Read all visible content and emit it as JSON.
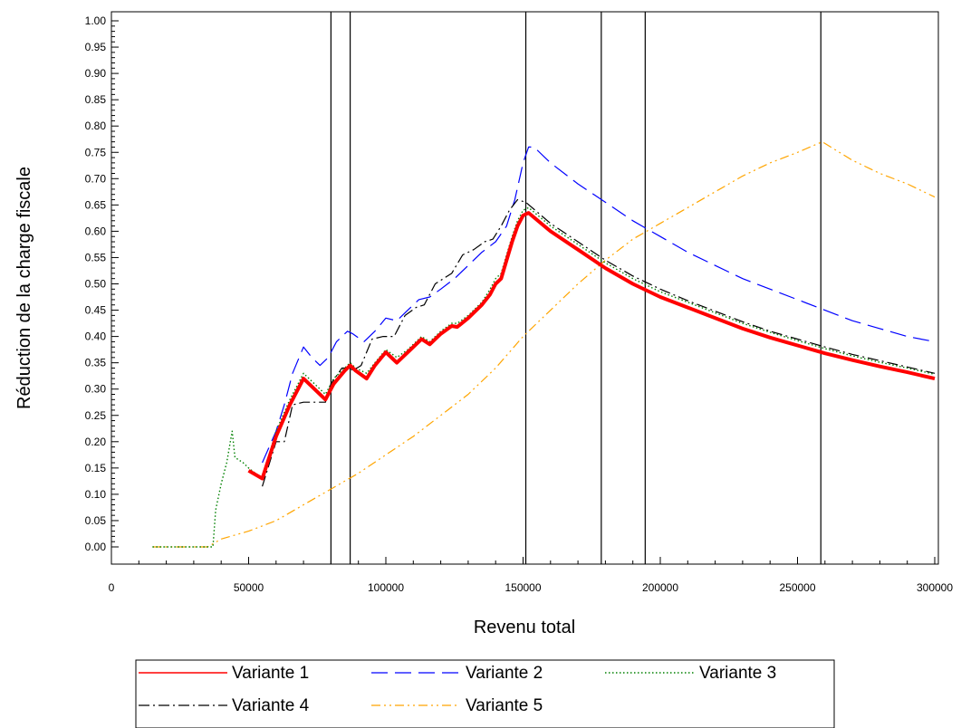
{
  "chart_data": {
    "type": "line",
    "xlabel": "Revenu total",
    "ylabel": "Réduction de la charge fiscale",
    "xlim": [
      0,
      300000
    ],
    "ylim": [
      0,
      1.0
    ],
    "x_ticks": [
      0,
      50000,
      100000,
      150000,
      200000,
      250000,
      300000
    ],
    "x_tick_labels": [
      "0",
      "50000",
      "100000",
      "150000",
      "200000",
      "250000",
      "300000"
    ],
    "y_ticks": [
      0,
      0.05,
      0.1,
      0.15,
      0.2,
      0.25,
      0.3,
      0.35,
      0.4,
      0.45,
      0.5,
      0.55,
      0.6,
      0.65,
      0.7,
      0.75,
      0.8,
      0.85,
      0.9,
      0.95,
      1.0
    ],
    "y_tick_labels": [
      "0.00",
      "0.05",
      "0.10",
      "0.15",
      "0.20",
      "0.25",
      "0.30",
      "0.35",
      "0.40",
      "0.45",
      "0.50",
      "0.55",
      "0.60",
      "0.65",
      "0.70",
      "0.75",
      "0.80",
      "0.85",
      "0.90",
      "0.95",
      "1.00"
    ],
    "grid": false,
    "vertical_reference_lines": [
      80000,
      87000,
      151000,
      178500,
      194500,
      258500
    ],
    "legend_position": "bottom",
    "series": [
      {
        "name": "Variante 1",
        "color": "#ff0000",
        "style": "solid-thick",
        "points": [
          [
            50000,
            0.145
          ],
          [
            55000,
            0.13
          ],
          [
            60000,
            0.21
          ],
          [
            65000,
            0.27
          ],
          [
            70000,
            0.32
          ],
          [
            74000,
            0.3
          ],
          [
            78000,
            0.28
          ],
          [
            81000,
            0.31
          ],
          [
            85000,
            0.335
          ],
          [
            87000,
            0.345
          ],
          [
            89000,
            0.335
          ],
          [
            93000,
            0.32
          ],
          [
            96000,
            0.345
          ],
          [
            100000,
            0.37
          ],
          [
            104000,
            0.35
          ],
          [
            108000,
            0.37
          ],
          [
            113000,
            0.395
          ],
          [
            116000,
            0.385
          ],
          [
            120000,
            0.405
          ],
          [
            124000,
            0.42
          ],
          [
            126000,
            0.418
          ],
          [
            130000,
            0.435
          ],
          [
            135000,
            0.46
          ],
          [
            138000,
            0.48
          ],
          [
            140000,
            0.5
          ],
          [
            142000,
            0.51
          ],
          [
            144000,
            0.545
          ],
          [
            146000,
            0.58
          ],
          [
            148000,
            0.61
          ],
          [
            150000,
            0.63
          ],
          [
            152000,
            0.635
          ],
          [
            160000,
            0.6
          ],
          [
            170000,
            0.565
          ],
          [
            180000,
            0.53
          ],
          [
            190000,
            0.5
          ],
          [
            200000,
            0.475
          ],
          [
            210000,
            0.455
          ],
          [
            220000,
            0.435
          ],
          [
            230000,
            0.415
          ],
          [
            240000,
            0.398
          ],
          [
            250000,
            0.383
          ],
          [
            260000,
            0.368
          ],
          [
            270000,
            0.355
          ],
          [
            280000,
            0.343
          ],
          [
            290000,
            0.332
          ],
          [
            300000,
            0.32
          ]
        ]
      },
      {
        "name": "Variante 2",
        "color": "#0000ff",
        "style": "long-dash",
        "points": [
          [
            55000,
            0.16
          ],
          [
            60000,
            0.22
          ],
          [
            63000,
            0.27
          ],
          [
            66000,
            0.33
          ],
          [
            70000,
            0.38
          ],
          [
            73000,
            0.36
          ],
          [
            76000,
            0.345
          ],
          [
            79000,
            0.36
          ],
          [
            82000,
            0.39
          ],
          [
            86000,
            0.41
          ],
          [
            88000,
            0.405
          ],
          [
            92000,
            0.39
          ],
          [
            96000,
            0.41
          ],
          [
            100000,
            0.435
          ],
          [
            104000,
            0.43
          ],
          [
            108000,
            0.45
          ],
          [
            112000,
            0.47
          ],
          [
            116000,
            0.475
          ],
          [
            120000,
            0.49
          ],
          [
            125000,
            0.51
          ],
          [
            130000,
            0.535
          ],
          [
            135000,
            0.56
          ],
          [
            140000,
            0.58
          ],
          [
            144000,
            0.61
          ],
          [
            147000,
            0.66
          ],
          [
            150000,
            0.73
          ],
          [
            152000,
            0.76
          ],
          [
            154000,
            0.76
          ],
          [
            160000,
            0.73
          ],
          [
            170000,
            0.69
          ],
          [
            180000,
            0.655
          ],
          [
            190000,
            0.62
          ],
          [
            200000,
            0.59
          ],
          [
            210000,
            0.56
          ],
          [
            220000,
            0.535
          ],
          [
            230000,
            0.51
          ],
          [
            240000,
            0.49
          ],
          [
            250000,
            0.47
          ],
          [
            260000,
            0.45
          ],
          [
            270000,
            0.43
          ],
          [
            280000,
            0.415
          ],
          [
            290000,
            0.4
          ],
          [
            300000,
            0.39
          ]
        ]
      },
      {
        "name": "Variante 3",
        "color": "#008000",
        "style": "dotted",
        "points": [
          [
            15000,
            0.0
          ],
          [
            37000,
            0.0
          ],
          [
            38000,
            0.07
          ],
          [
            40000,
            0.12
          ],
          [
            42000,
            0.16
          ],
          [
            44000,
            0.22
          ],
          [
            45000,
            0.17
          ],
          [
            48000,
            0.16
          ],
          [
            50000,
            0.15
          ],
          [
            55000,
            0.13
          ],
          [
            60000,
            0.22
          ],
          [
            65000,
            0.28
          ],
          [
            70000,
            0.33
          ],
          [
            74000,
            0.31
          ],
          [
            78000,
            0.29
          ],
          [
            81000,
            0.32
          ],
          [
            85000,
            0.34
          ],
          [
            87000,
            0.35
          ],
          [
            89000,
            0.34
          ],
          [
            93000,
            0.33
          ],
          [
            96000,
            0.35
          ],
          [
            100000,
            0.375
          ],
          [
            104000,
            0.36
          ],
          [
            108000,
            0.375
          ],
          [
            113000,
            0.4
          ],
          [
            116000,
            0.39
          ],
          [
            120000,
            0.41
          ],
          [
            124000,
            0.425
          ],
          [
            126000,
            0.425
          ],
          [
            130000,
            0.44
          ],
          [
            135000,
            0.465
          ],
          [
            138000,
            0.49
          ],
          [
            140000,
            0.51
          ],
          [
            142000,
            0.52
          ],
          [
            144000,
            0.555
          ],
          [
            146000,
            0.59
          ],
          [
            148000,
            0.62
          ],
          [
            150000,
            0.64
          ],
          [
            152000,
            0.645
          ],
          [
            160000,
            0.61
          ],
          [
            170000,
            0.575
          ],
          [
            180000,
            0.54
          ],
          [
            190000,
            0.51
          ],
          [
            200000,
            0.485
          ],
          [
            210000,
            0.465
          ],
          [
            220000,
            0.445
          ],
          [
            230000,
            0.425
          ],
          [
            240000,
            0.408
          ],
          [
            250000,
            0.392
          ],
          [
            260000,
            0.377
          ],
          [
            270000,
            0.363
          ],
          [
            280000,
            0.351
          ],
          [
            290000,
            0.34
          ],
          [
            300000,
            0.328
          ]
        ]
      },
      {
        "name": "Variante 4",
        "color": "#000000",
        "style": "dash-dot",
        "points": [
          [
            55000,
            0.115
          ],
          [
            60000,
            0.2
          ],
          [
            63000,
            0.2
          ],
          [
            66000,
            0.27
          ],
          [
            70000,
            0.275
          ],
          [
            74000,
            0.275
          ],
          [
            78000,
            0.275
          ],
          [
            80000,
            0.31
          ],
          [
            84000,
            0.34
          ],
          [
            87000,
            0.34
          ],
          [
            88000,
            0.335
          ],
          [
            91000,
            0.345
          ],
          [
            95000,
            0.395
          ],
          [
            99000,
            0.4
          ],
          [
            103000,
            0.4
          ],
          [
            107000,
            0.44
          ],
          [
            111000,
            0.455
          ],
          [
            114000,
            0.46
          ],
          [
            118000,
            0.5
          ],
          [
            121000,
            0.51
          ],
          [
            124000,
            0.52
          ],
          [
            128000,
            0.555
          ],
          [
            132000,
            0.565
          ],
          [
            136000,
            0.58
          ],
          [
            139000,
            0.585
          ],
          [
            142000,
            0.61
          ],
          [
            145000,
            0.64
          ],
          [
            148000,
            0.66
          ],
          [
            151000,
            0.655
          ],
          [
            160000,
            0.615
          ],
          [
            170000,
            0.58
          ],
          [
            180000,
            0.545
          ],
          [
            190000,
            0.515
          ],
          [
            200000,
            0.49
          ],
          [
            210000,
            0.468
          ],
          [
            220000,
            0.448
          ],
          [
            230000,
            0.428
          ],
          [
            240000,
            0.41
          ],
          [
            250000,
            0.395
          ],
          [
            260000,
            0.38
          ],
          [
            270000,
            0.366
          ],
          [
            280000,
            0.354
          ],
          [
            290000,
            0.342
          ],
          [
            300000,
            0.33
          ]
        ]
      },
      {
        "name": "Variante 5",
        "color": "#ffa500",
        "style": "dash-dot-dot",
        "points": [
          [
            15000,
            0.0
          ],
          [
            35000,
            0.0
          ],
          [
            40000,
            0.015
          ],
          [
            50000,
            0.03
          ],
          [
            60000,
            0.05
          ],
          [
            70000,
            0.08
          ],
          [
            80000,
            0.11
          ],
          [
            90000,
            0.14
          ],
          [
            100000,
            0.175
          ],
          [
            110000,
            0.21
          ],
          [
            120000,
            0.25
          ],
          [
            130000,
            0.29
          ],
          [
            140000,
            0.34
          ],
          [
            150000,
            0.4
          ],
          [
            160000,
            0.45
          ],
          [
            170000,
            0.5
          ],
          [
            180000,
            0.545
          ],
          [
            190000,
            0.585
          ],
          [
            200000,
            0.615
          ],
          [
            210000,
            0.645
          ],
          [
            220000,
            0.675
          ],
          [
            230000,
            0.705
          ],
          [
            240000,
            0.73
          ],
          [
            250000,
            0.75
          ],
          [
            259000,
            0.77
          ],
          [
            270000,
            0.735
          ],
          [
            280000,
            0.71
          ],
          [
            290000,
            0.69
          ],
          [
            300000,
            0.665
          ]
        ]
      }
    ]
  }
}
